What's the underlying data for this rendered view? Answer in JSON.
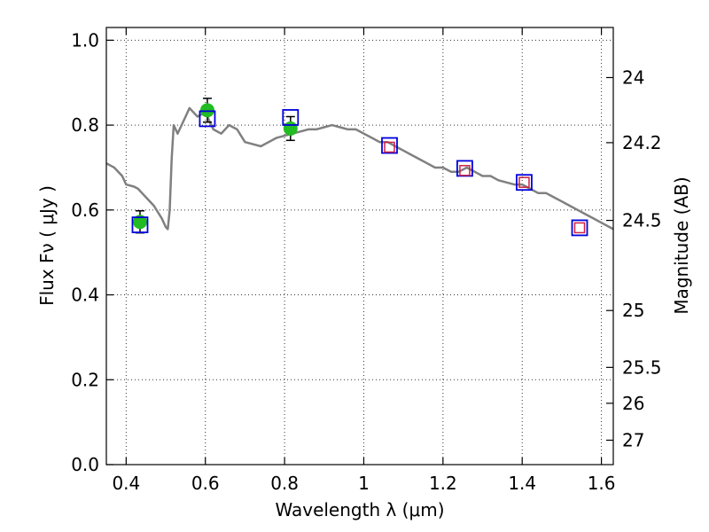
{
  "chart_data": {
    "type": "scatter",
    "title": "",
    "xlabel": "Wavelength  λ (μm)",
    "ylabel": "Flux  Fν  ( μJy )",
    "ylabel_right": "Magnitude (AB)",
    "xlim": [
      0.35,
      1.63
    ],
    "ylim": [
      0.0,
      1.03
    ],
    "grid": true,
    "x_ticks": [
      0.4,
      0.6,
      0.8,
      1.0,
      1.2,
      1.4,
      1.6
    ],
    "x_tick_labels": [
      "0.4",
      "0.6",
      "0.8",
      "1",
      "1.2",
      "1.4",
      "1.6"
    ],
    "y_ticks": [
      0.0,
      0.2,
      0.4,
      0.6,
      0.8,
      1.0
    ],
    "y_tick_labels": [
      "0.0",
      "0.2",
      "0.4",
      "0.6",
      "0.8",
      "1.0"
    ],
    "right_ticks": [
      {
        "label": "24",
        "mag": 24.0
      },
      {
        "label": "24.2",
        "mag": 24.2
      },
      {
        "label": "24.5",
        "mag": 24.5
      },
      {
        "label": "25",
        "mag": 25.0
      },
      {
        "label": "25.5",
        "mag": 25.5
      },
      {
        "label": "26",
        "mag": 26.0
      },
      {
        "label": "27",
        "mag": 27.0
      }
    ],
    "series": [
      {
        "kind": "line",
        "color": "#808080",
        "x": [
          0.35,
          0.37,
          0.39,
          0.4,
          0.42,
          0.43,
          0.44,
          0.45,
          0.47,
          0.49,
          0.5,
          0.505,
          0.51,
          0.515,
          0.52,
          0.53,
          0.54,
          0.55,
          0.56,
          0.57,
          0.58,
          0.6,
          0.62,
          0.64,
          0.66,
          0.68,
          0.7,
          0.72,
          0.74,
          0.76,
          0.78,
          0.8,
          0.82,
          0.84,
          0.86,
          0.88,
          0.9,
          0.92,
          0.94,
          0.96,
          0.98,
          1.0,
          1.02,
          1.04,
          1.06,
          1.08,
          1.1,
          1.12,
          1.14,
          1.16,
          1.18,
          1.2,
          1.22,
          1.24,
          1.26,
          1.28,
          1.3,
          1.32,
          1.34,
          1.36,
          1.38,
          1.4,
          1.42,
          1.44,
          1.46,
          1.48,
          1.5,
          1.52,
          1.54,
          1.56,
          1.58,
          1.6,
          1.63
        ],
        "y": [
          0.71,
          0.7,
          0.68,
          0.66,
          0.655,
          0.65,
          0.64,
          0.63,
          0.61,
          0.58,
          0.56,
          0.555,
          0.6,
          0.72,
          0.8,
          0.78,
          0.8,
          0.82,
          0.84,
          0.83,
          0.82,
          0.83,
          0.79,
          0.78,
          0.8,
          0.79,
          0.76,
          0.755,
          0.75,
          0.76,
          0.77,
          0.775,
          0.78,
          0.785,
          0.79,
          0.79,
          0.795,
          0.8,
          0.795,
          0.79,
          0.79,
          0.78,
          0.77,
          0.76,
          0.76,
          0.75,
          0.74,
          0.73,
          0.72,
          0.71,
          0.7,
          0.7,
          0.69,
          0.69,
          0.7,
          0.69,
          0.68,
          0.68,
          0.67,
          0.665,
          0.66,
          0.66,
          0.65,
          0.64,
          0.64,
          0.63,
          0.62,
          0.61,
          0.6,
          0.59,
          0.58,
          0.57,
          0.555
        ]
      },
      {
        "kind": "green-points-with-errorbars",
        "color": "#22bb22",
        "x": [
          0.435,
          0.605,
          0.815
        ],
        "y": [
          0.572,
          0.835,
          0.792
        ],
        "yerr": [
          0.026,
          0.028,
          0.028
        ]
      },
      {
        "kind": "blue-open-squares",
        "color": "#0000dd",
        "x": [
          0.435,
          0.605,
          0.815,
          1.065,
          1.255,
          1.405,
          1.545
        ],
        "y": [
          0.565,
          0.815,
          0.818,
          0.752,
          0.698,
          0.665,
          0.558
        ]
      },
      {
        "kind": "red-open-squares",
        "color": "#cc2244",
        "x": [
          1.065,
          1.255,
          1.405,
          1.545
        ],
        "y": [
          0.748,
          0.693,
          0.665,
          0.558
        ]
      }
    ]
  }
}
